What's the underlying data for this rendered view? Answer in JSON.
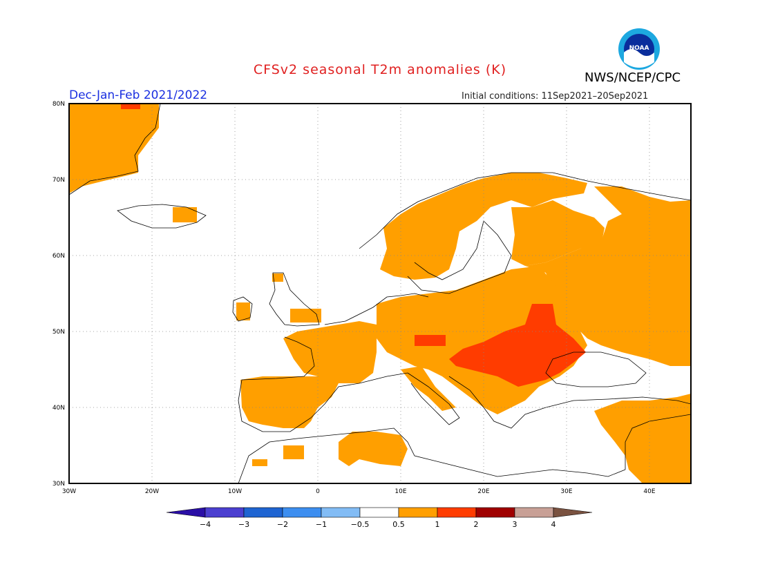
{
  "header": {
    "title": "CFSv2 seasonal T2m anomalies (K)",
    "agency": "NWS/NCEP/CPC",
    "period": "Dec-Jan-Feb 2021/2022",
    "initial_conditions": "Initial conditions: 11Sep2021–20Sep2021",
    "logo_text": "NOAA"
  },
  "map": {
    "lon_range": [
      -30,
      45
    ],
    "lat_range": [
      30,
      80
    ],
    "lat_ticks": [
      "30N",
      "40N",
      "50N",
      "60N",
      "70N",
      "80N"
    ],
    "lon_ticks": [
      "30W",
      "20W",
      "10W",
      "0",
      "10E",
      "20E",
      "30E",
      "40E"
    ],
    "grid": "dotted"
  },
  "colorbar": {
    "labels": [
      "−4",
      "−3",
      "−2",
      "−1",
      "−0.5",
      "0.5",
      "1",
      "2",
      "3",
      "4"
    ],
    "colors": [
      "#2a0fa6",
      "#4b3fd0",
      "#1e64d2",
      "#3c8ef0",
      "#82bcf5",
      "#ffffff",
      "#ff9f00",
      "#ff3c00",
      "#a00000",
      "#c8a096",
      "#7a5240"
    ]
  },
  "colors": {
    "warm1": "#ff9f00",
    "warm2": "#ff3c00",
    "neutral": "#ffffff"
  }
}
